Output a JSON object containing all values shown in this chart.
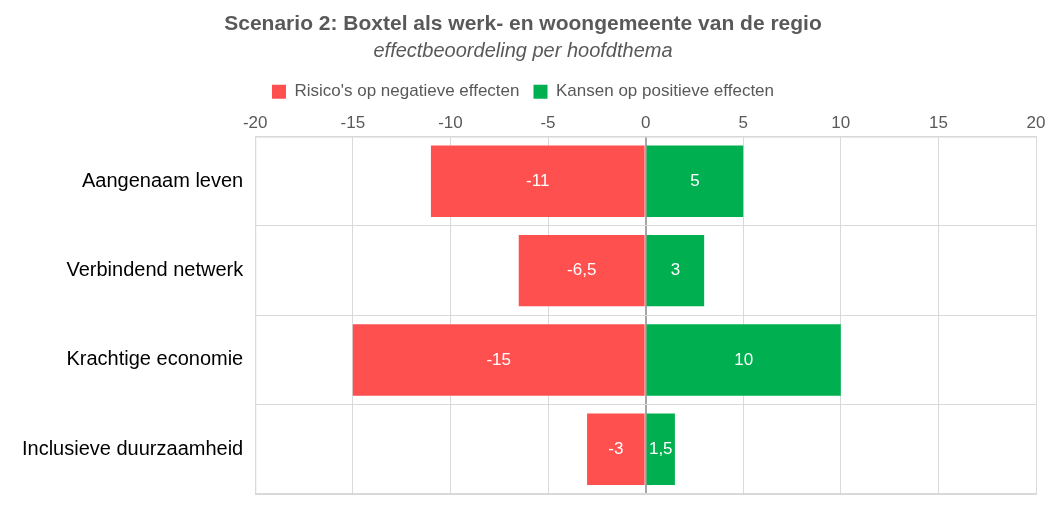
{
  "chart_data": {
    "type": "bar",
    "title": "Scenario 2: Boxtel als werk- en woongemeente van de regio",
    "subtitle": "effectbeoordeling per hoofdthema",
    "orientation": "horizontal",
    "stacked": true,
    "categories": [
      "Aangenaam leven",
      "Verbindend netwerk",
      "Krachtige economie",
      "Inclusieve duurzaamheid"
    ],
    "series": [
      {
        "name": "Risico's op negatieve effecten",
        "color": "#ff5050",
        "values": [
          -11,
          -6.5,
          -15,
          -3
        ],
        "value_labels": [
          "-11",
          "-6,5",
          "-15",
          "-3"
        ]
      },
      {
        "name": "Kansen op positieve effecten",
        "color": "#00b050",
        "values": [
          5,
          3,
          10,
          1.5
        ],
        "value_labels": [
          "5",
          "3",
          "10",
          "1,5"
        ]
      }
    ],
    "xlim": [
      -20,
      20
    ],
    "xticks": [
      -20,
      -15,
      -10,
      -5,
      0,
      5,
      10,
      15,
      20
    ],
    "grid": true,
    "legend": "top"
  }
}
